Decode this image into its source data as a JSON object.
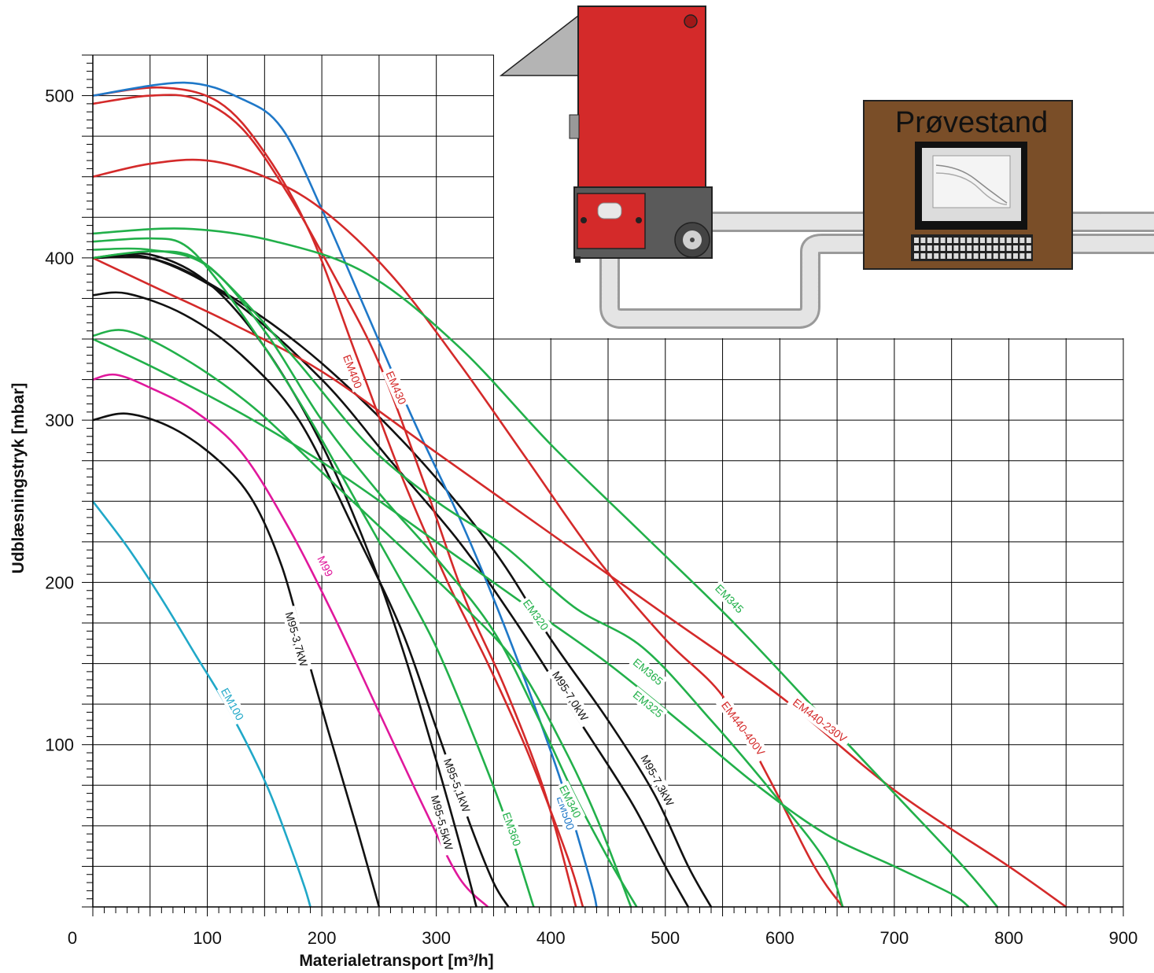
{
  "chart_data": {
    "type": "line",
    "xlabel": "Materialetransport [m³/h]",
    "ylabel": "Udblæsningstryk [mbar]",
    "xlim": [
      0,
      900
    ],
    "ylim": [
      0,
      525
    ],
    "x_ticks": [
      "0",
      "100",
      "200",
      "300",
      "400",
      "500",
      "600",
      "700",
      "800",
      "900"
    ],
    "y_ticks": [
      "100",
      "200",
      "300",
      "400",
      "500"
    ],
    "grid": true,
    "colors": {
      "black": "#111111",
      "red": "#d42a2a",
      "green": "#22b04a",
      "blue": "#1f78c8",
      "cyan": "#20a8c8",
      "magenta": "#e0189c"
    },
    "series": [
      {
        "name": "EM100",
        "color": "#20a8c8",
        "label_at": [
          122,
          125
        ],
        "points": [
          [
            0,
            250
          ],
          [
            30,
            222
          ],
          [
            60,
            190
          ],
          [
            90,
            155
          ],
          [
            120,
            120
          ],
          [
            150,
            78
          ],
          [
            170,
            42
          ],
          [
            185,
            12
          ],
          [
            190,
            0
          ]
        ]
      },
      {
        "name": "M99",
        "color": "#e0189c",
        "label_at": [
          203,
          210
        ],
        "points": [
          [
            0,
            325
          ],
          [
            20,
            328
          ],
          [
            50,
            320
          ],
          [
            90,
            305
          ],
          [
            130,
            280
          ],
          [
            170,
            235
          ],
          [
            210,
            180
          ],
          [
            250,
            120
          ],
          [
            290,
            60
          ],
          [
            320,
            18
          ],
          [
            345,
            0
          ]
        ]
      },
      {
        "name": "M95-3,7kW",
        "color": "#111111",
        "label_at": [
          178,
          165
        ],
        "points": [
          [
            0,
            300
          ],
          [
            30,
            304
          ],
          [
            70,
            295
          ],
          [
            110,
            275
          ],
          [
            140,
            250
          ],
          [
            165,
            210
          ],
          [
            185,
            160
          ],
          [
            205,
            110
          ],
          [
            230,
            50
          ],
          [
            250,
            0
          ]
        ]
      },
      {
        "name": "M95-5,1kW",
        "color": "#111111",
        "label_at": [
          318,
          75
        ],
        "points": [
          [
            0,
            377
          ],
          [
            30,
            378
          ],
          [
            80,
            365
          ],
          [
            130,
            340
          ],
          [
            180,
            300
          ],
          [
            230,
            230
          ],
          [
            270,
            170
          ],
          [
            300,
            110
          ],
          [
            330,
            50
          ],
          [
            350,
            15
          ],
          [
            363,
            0
          ]
        ]
      },
      {
        "name": "M95-5,5kW",
        "color": "#111111",
        "label_at": [
          305,
          52
        ],
        "points": [
          [
            0,
            400
          ],
          [
            50,
            402
          ],
          [
            100,
            385
          ],
          [
            150,
            345
          ],
          [
            200,
            285
          ],
          [
            240,
            220
          ],
          [
            270,
            160
          ],
          [
            300,
            90
          ],
          [
            320,
            40
          ],
          [
            335,
            0
          ]
        ]
      },
      {
        "name": "M95-7,0kW",
        "color": "#111111",
        "label_at": [
          417,
          130
        ],
        "points": [
          [
            0,
            400
          ],
          [
            50,
            400
          ],
          [
            120,
            375
          ],
          [
            200,
            325
          ],
          [
            260,
            275
          ],
          [
            320,
            225
          ],
          [
            370,
            175
          ],
          [
            420,
            120
          ],
          [
            470,
            65
          ],
          [
            500,
            25
          ],
          [
            520,
            0
          ]
        ]
      },
      {
        "name": "M95-7,3kW",
        "color": "#111111",
        "label_at": [
          493,
          78
        ],
        "points": [
          [
            0,
            400
          ],
          [
            60,
            398
          ],
          [
            130,
            372
          ],
          [
            200,
            335
          ],
          [
            280,
            280
          ],
          [
            350,
            220
          ],
          [
            400,
            165
          ],
          [
            450,
            115
          ],
          [
            490,
            70
          ],
          [
            520,
            25
          ],
          [
            540,
            0
          ]
        ]
      },
      {
        "name": "EM400",
        "color": "#d42a2a",
        "label_at": [
          227,
          330
        ],
        "points": [
          [
            0,
            500
          ],
          [
            60,
            505
          ],
          [
            110,
            496
          ],
          [
            150,
            465
          ],
          [
            190,
            415
          ],
          [
            230,
            340
          ],
          [
            270,
            265
          ],
          [
            310,
            200
          ],
          [
            345,
            150
          ],
          [
            380,
            95
          ],
          [
            415,
            30
          ],
          [
            428,
            0
          ]
        ]
      },
      {
        "name": "EM430",
        "color": "#d42a2a",
        "label_at": [
          265,
          320
        ],
        "points": [
          [
            0,
            495
          ],
          [
            50,
            500
          ],
          [
            90,
            498
          ],
          [
            130,
            480
          ],
          [
            170,
            440
          ],
          [
            210,
            390
          ],
          [
            250,
            335
          ],
          [
            290,
            260
          ],
          [
            325,
            190
          ],
          [
            360,
            135
          ],
          [
            395,
            70
          ],
          [
            422,
            0
          ]
        ]
      },
      {
        "name": "EM500",
        "color": "#1f78c8",
        "label_at": [
          413,
          58
        ],
        "points": [
          [
            0,
            500
          ],
          [
            80,
            508
          ],
          [
            130,
            498
          ],
          [
            165,
            480
          ],
          [
            200,
            430
          ],
          [
            240,
            365
          ],
          [
            280,
            300
          ],
          [
            320,
            240
          ],
          [
            350,
            190
          ],
          [
            380,
            135
          ],
          [
            410,
            75
          ],
          [
            435,
            15
          ],
          [
            440,
            0
          ]
        ]
      },
      {
        "name": "EM440-400V",
        "color": "#d42a2a",
        "label_at": [
          568,
          110
        ],
        "points": [
          [
            0,
            450
          ],
          [
            50,
            458
          ],
          [
            100,
            460
          ],
          [
            150,
            450
          ],
          [
            200,
            430
          ],
          [
            260,
            390
          ],
          [
            320,
            335
          ],
          [
            380,
            275
          ],
          [
            440,
            215
          ],
          [
            500,
            165
          ],
          [
            550,
            130
          ],
          [
            590,
            80
          ],
          [
            630,
            25
          ],
          [
            655,
            0
          ]
        ]
      },
      {
        "name": "EM440-230V",
        "color": "#d42a2a",
        "label_at": [
          635,
          115
        ],
        "points": [
          [
            0,
            400
          ],
          [
            60,
            380
          ],
          [
            120,
            360
          ],
          [
            200,
            330
          ],
          [
            300,
            280
          ],
          [
            400,
            230
          ],
          [
            500,
            180
          ],
          [
            600,
            130
          ],
          [
            700,
            72
          ],
          [
            800,
            25
          ],
          [
            850,
            0
          ]
        ]
      },
      {
        "name": "EM320",
        "color": "#22b04a",
        "label_at": [
          387,
          180
        ],
        "points": [
          [
            0,
            352
          ],
          [
            30,
            355
          ],
          [
            80,
            338
          ],
          [
            140,
            308
          ],
          [
            200,
            268
          ],
          [
            260,
            228
          ],
          [
            320,
            188
          ],
          [
            370,
            150
          ],
          [
            410,
            100
          ],
          [
            440,
            55
          ],
          [
            470,
            0
          ]
        ]
      },
      {
        "name": "EM325",
        "color": "#22b04a",
        "label_at": [
          485,
          125
        ],
        "points": [
          [
            0,
            350
          ],
          [
            60,
            330
          ],
          [
            140,
            300
          ],
          [
            220,
            265
          ],
          [
            300,
            225
          ],
          [
            380,
            185
          ],
          [
            450,
            150
          ],
          [
            520,
            110
          ],
          [
            580,
            75
          ],
          [
            640,
            45
          ],
          [
            700,
            25
          ],
          [
            750,
            8
          ],
          [
            765,
            0
          ]
        ]
      },
      {
        "name": "EM340",
        "color": "#22b04a",
        "label_at": [
          417,
          65
        ],
        "points": [
          [
            0,
            405
          ],
          [
            50,
            405
          ],
          [
            100,
            395
          ],
          [
            150,
            355
          ],
          [
            200,
            300
          ],
          [
            250,
            255
          ],
          [
            300,
            215
          ],
          [
            350,
            170
          ],
          [
            390,
            115
          ],
          [
            420,
            70
          ],
          [
            450,
            30
          ],
          [
            475,
            0
          ]
        ]
      },
      {
        "name": "EM345",
        "color": "#22b04a",
        "label_at": [
          556,
          190
        ],
        "points": [
          [
            0,
            415
          ],
          [
            80,
            418
          ],
          [
            160,
            410
          ],
          [
            240,
            390
          ],
          [
            320,
            345
          ],
          [
            400,
            285
          ],
          [
            480,
            230
          ],
          [
            560,
            175
          ],
          [
            640,
            115
          ],
          [
            700,
            70
          ],
          [
            760,
            25
          ],
          [
            790,
            0
          ]
        ]
      },
      {
        "name": "EM360",
        "color": "#22b04a",
        "label_at": [
          366,
          48
        ],
        "points": [
          [
            0,
            410
          ],
          [
            50,
            412
          ],
          [
            80,
            408
          ],
          [
            110,
            385
          ],
          [
            150,
            345
          ],
          [
            190,
            300
          ],
          [
            230,
            250
          ],
          [
            270,
            200
          ],
          [
            300,
            160
          ],
          [
            330,
            110
          ],
          [
            360,
            55
          ],
          [
            385,
            0
          ]
        ]
      },
      {
        "name": "EM365",
        "color": "#22b04a",
        "label_at": [
          485,
          145
        ],
        "points": [
          [
            0,
            400
          ],
          [
            50,
            404
          ],
          [
            90,
            400
          ],
          [
            130,
            375
          ],
          [
            180,
            335
          ],
          [
            240,
            285
          ],
          [
            300,
            250
          ],
          [
            360,
            222
          ],
          [
            420,
            185
          ],
          [
            480,
            160
          ],
          [
            540,
            115
          ],
          [
            600,
            65
          ],
          [
            640,
            28
          ],
          [
            655,
            0
          ]
        ]
      }
    ],
    "inset": {
      "title": "Prøvestand"
    }
  }
}
